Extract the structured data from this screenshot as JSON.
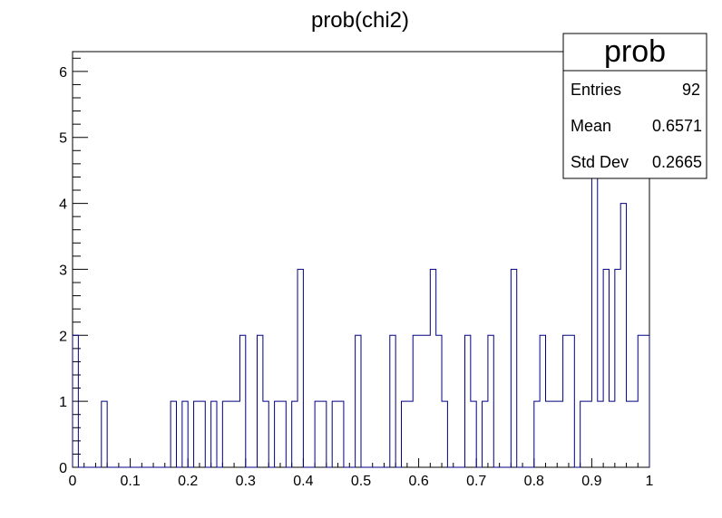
{
  "title": "prob(chi2)",
  "stats_box": {
    "title": "prob",
    "rows": [
      {
        "label": "Entries",
        "value": "92"
      },
      {
        "label": "Mean",
        "value": "0.6571"
      },
      {
        "label": "Std Dev",
        "value": "0.2665"
      }
    ]
  },
  "colors": {
    "histogram_line": "#000080",
    "axis": "#000000",
    "background": "#ffffff"
  },
  "chart_data": {
    "type": "histogram",
    "title": "prob(chi2)",
    "xlabel": "",
    "ylabel": "",
    "xlim": [
      0,
      1
    ],
    "ylim": [
      0,
      6.3
    ],
    "bin_width": 0.01,
    "bins": 100,
    "x_ticks": [
      "0",
      "0.1",
      "0.2",
      "0.3",
      "0.4",
      "0.5",
      "0.6",
      "0.7",
      "0.8",
      "0.9",
      "1"
    ],
    "y_ticks": [
      "0",
      "1",
      "2",
      "3",
      "4",
      "5",
      "6"
    ],
    "values": [
      2,
      0,
      0,
      0,
      0,
      1,
      0,
      0,
      0,
      0,
      0,
      0,
      0,
      0,
      0,
      0,
      0,
      1,
      0,
      1,
      0,
      1,
      1,
      0,
      1,
      0,
      1,
      1,
      1,
      2,
      0,
      0,
      2,
      1,
      0,
      1,
      1,
      0,
      1,
      3,
      0,
      0,
      1,
      1,
      0,
      1,
      1,
      0,
      0,
      2,
      0,
      0,
      0,
      0,
      0,
      2,
      0,
      1,
      1,
      2,
      2,
      2,
      3,
      2,
      1,
      0,
      0,
      0,
      2,
      1,
      0,
      1,
      2,
      0,
      0,
      0,
      3,
      0,
      0,
      0,
      1,
      2,
      1,
      1,
      1,
      2,
      2,
      0,
      1,
      1,
      5,
      1,
      3,
      1,
      3,
      4,
      1,
      1,
      2,
      2
    ]
  }
}
